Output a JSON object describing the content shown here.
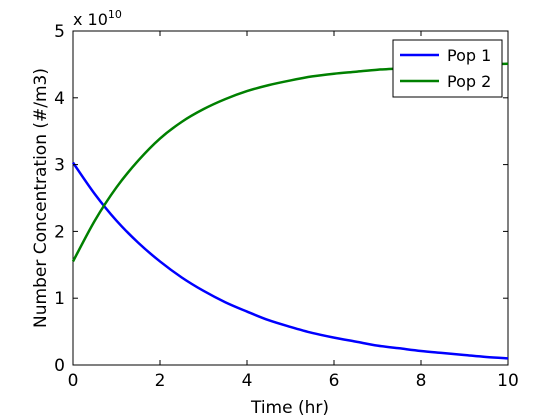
{
  "chart_data": {
    "type": "line",
    "title": "",
    "xlabel": "Time (hr)",
    "ylabel": "Number Concentration (#/m3)",
    "xlim": [
      0,
      10
    ],
    "ylim": [
      0,
      5
    ],
    "xticks": [
      0,
      2,
      4,
      6,
      8,
      10
    ],
    "yticks": [
      0,
      1,
      2,
      3,
      4,
      5
    ],
    "y_multiplier": {
      "base": "x 10",
      "exponent": "10"
    },
    "grid": false,
    "legend_position": "top-right",
    "x": [
      0,
      0.5,
      1,
      1.5,
      2,
      2.5,
      3,
      3.5,
      4,
      4.5,
      5,
      5.5,
      6,
      6.5,
      7,
      7.5,
      8,
      8.5,
      9,
      9.5,
      10
    ],
    "series": [
      {
        "name": "Pop 1",
        "color": "#0000ff",
        "values": [
          3.03,
          2.56,
          2.16,
          1.83,
          1.55,
          1.31,
          1.11,
          0.94,
          0.8,
          0.67,
          0.57,
          0.48,
          0.41,
          0.35,
          0.29,
          0.25,
          0.21,
          0.18,
          0.15,
          0.12,
          0.1
        ]
      },
      {
        "name": "Pop 2",
        "color": "#008000",
        "values": [
          1.55,
          2.16,
          2.66,
          3.06,
          3.39,
          3.64,
          3.83,
          3.98,
          4.1,
          4.19,
          4.26,
          4.32,
          4.36,
          4.39,
          4.42,
          4.44,
          4.46,
          4.48,
          4.49,
          4.5,
          4.51
        ]
      }
    ]
  }
}
